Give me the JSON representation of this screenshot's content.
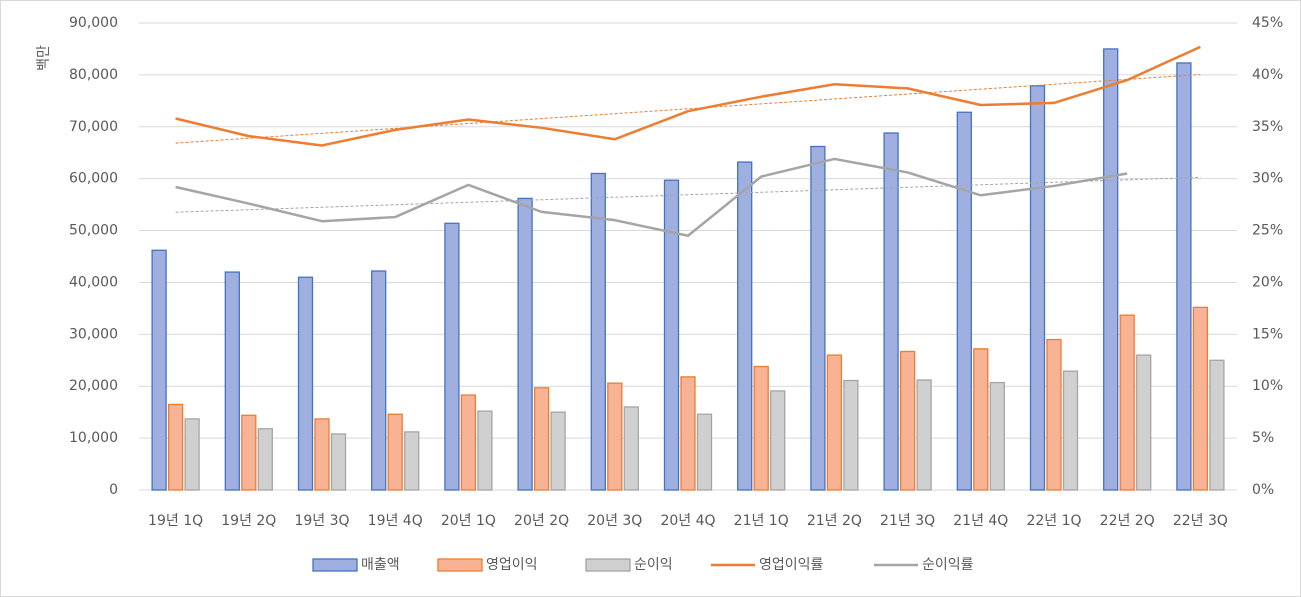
{
  "chart_data": {
    "type": "bar",
    "y_label": "백만",
    "categories": [
      "19년 1Q",
      "19년 2Q",
      "19년 3Q",
      "19년 4Q",
      "20년 1Q",
      "20년 2Q",
      "20년 3Q",
      "20년 4Q",
      "21년 1Q",
      "21년 2Q",
      "21년 3Q",
      "21년 4Q",
      "22년 1Q",
      "22년 2Q",
      "22년 3Q"
    ],
    "series": [
      {
        "name": "매출액",
        "type": "bar",
        "color": "#4472c4",
        "values": [
          46200,
          42000,
          41000,
          42200,
          51400,
          56200,
          61000,
          59700,
          63200,
          66200,
          68800,
          72800,
          77900,
          85000,
          82300
        ]
      },
      {
        "name": "영업이익",
        "type": "bar",
        "color": "#ed7d31",
        "values": [
          16500,
          14400,
          13700,
          14600,
          18300,
          19700,
          20600,
          21800,
          23800,
          26000,
          26700,
          27200,
          29000,
          33700,
          35200
        ]
      },
      {
        "name": "순이익",
        "type": "bar",
        "color": "#a5a5a5",
        "values": [
          13700,
          11800,
          10800,
          11200,
          15200,
          15000,
          16000,
          14600,
          19100,
          21100,
          21200,
          20700,
          22900,
          26000,
          25000
        ]
      },
      {
        "name": "영업이익률",
        "type": "line",
        "axis": "y2",
        "color": "#ed7d31",
        "trendline": true,
        "values": [
          35.8,
          34.1,
          33.2,
          34.7,
          35.7,
          34.9,
          33.8,
          36.5,
          37.9,
          39.1,
          38.7,
          37.1,
          37.3,
          39.5,
          42.7
        ]
      },
      {
        "name": "순이익률",
        "type": "line",
        "axis": "y2",
        "color": "#a5a5a5",
        "trendline": true,
        "values": [
          29.2,
          27.6,
          25.9,
          26.3,
          29.4,
          26.8,
          26.0,
          24.5,
          30.2,
          31.9,
          30.6,
          28.4,
          29.3,
          30.5,
          null
        ]
      }
    ],
    "ylim": [
      0,
      90000
    ],
    "yticks": [
      0,
      {
        "value": 10000,
        "label": "10,000"
      },
      {
        "value": 20000,
        "label": "20,000"
      },
      {
        "value": 30000,
        "label": "30,000"
      },
      {
        "value": 40000,
        "label": "40,000"
      },
      {
        "value": 50000,
        "label": "50,000"
      },
      {
        "value": 60000,
        "label": "60,000"
      },
      {
        "value": 70000,
        "label": "70,000"
      },
      {
        "value": 80000,
        "label": "80,000"
      },
      {
        "value": 90000,
        "label": "90,000"
      }
    ],
    "y2lim": [
      0,
      45
    ],
    "y2ticks": [
      {
        "value": 0,
        "label": "0%"
      },
      {
        "value": 5,
        "label": "5%"
      },
      {
        "value": 10,
        "label": "10%"
      },
      {
        "value": 15,
        "label": "15%"
      },
      {
        "value": 20,
        "label": "20%"
      },
      {
        "value": 25,
        "label": "25%"
      },
      {
        "value": 30,
        "label": "30%"
      },
      {
        "value": 35,
        "label": "35%"
      },
      {
        "value": 40,
        "label": "40%"
      },
      {
        "value": 45,
        "label": "45%"
      }
    ],
    "grid": true,
    "legend": "bottom"
  }
}
